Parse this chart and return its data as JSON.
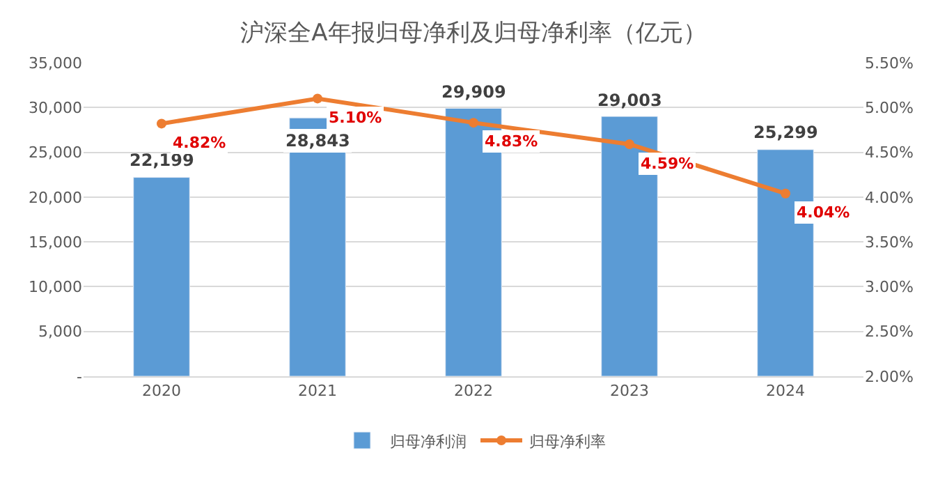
{
  "chart_data": {
    "type": "bar",
    "title": "沪深全A年报归母净利及归母净利率（亿元）",
    "categories": [
      "2020",
      "2021",
      "2022",
      "2023",
      "2024"
    ],
    "series": [
      {
        "name": "归母净利润",
        "color": "#5b9bd5",
        "values": [
          22199,
          28843,
          29909,
          29003,
          25299
        ],
        "value_labels": [
          "22,199",
          "28,843",
          "29,909",
          "29,003",
          "25,299"
        ]
      },
      {
        "name": "归母净利率",
        "type": "line",
        "axis": "y2",
        "color": "#ed7d31",
        "marker": "circle",
        "values": [
          4.82,
          5.1,
          4.83,
          4.59,
          4.04
        ],
        "value_labels": [
          "4.82%",
          "5.10%",
          "4.83%",
          "4.59%",
          "4.04%"
        ]
      }
    ],
    "ylim": [
      0,
      35000
    ],
    "yticks": [
      {
        "value": 0,
        "label": "-"
      },
      {
        "value": 5000,
        "label": "5,000"
      },
      {
        "value": 10000,
        "label": "10,000"
      },
      {
        "value": 15000,
        "label": "15,000"
      },
      {
        "value": 20000,
        "label": "20,000"
      },
      {
        "value": 25000,
        "label": "25,000"
      },
      {
        "value": 30000,
        "label": "30,000"
      },
      {
        "value": 35000,
        "label": "35,000"
      }
    ],
    "y2lim": [
      2.0,
      5.5
    ],
    "y2ticks": [
      {
        "value": 2.0,
        "label": "2.00%"
      },
      {
        "value": 2.5,
        "label": "2.50%"
      },
      {
        "value": 3.0,
        "label": "3.00%"
      },
      {
        "value": 3.5,
        "label": "3.50%"
      },
      {
        "value": 4.0,
        "label": "4.00%"
      },
      {
        "value": 4.5,
        "label": "4.50%"
      },
      {
        "value": 5.0,
        "label": "5.00%"
      },
      {
        "value": 5.5,
        "label": "5.50%"
      }
    ],
    "grid": "y",
    "legend": "bottom"
  }
}
